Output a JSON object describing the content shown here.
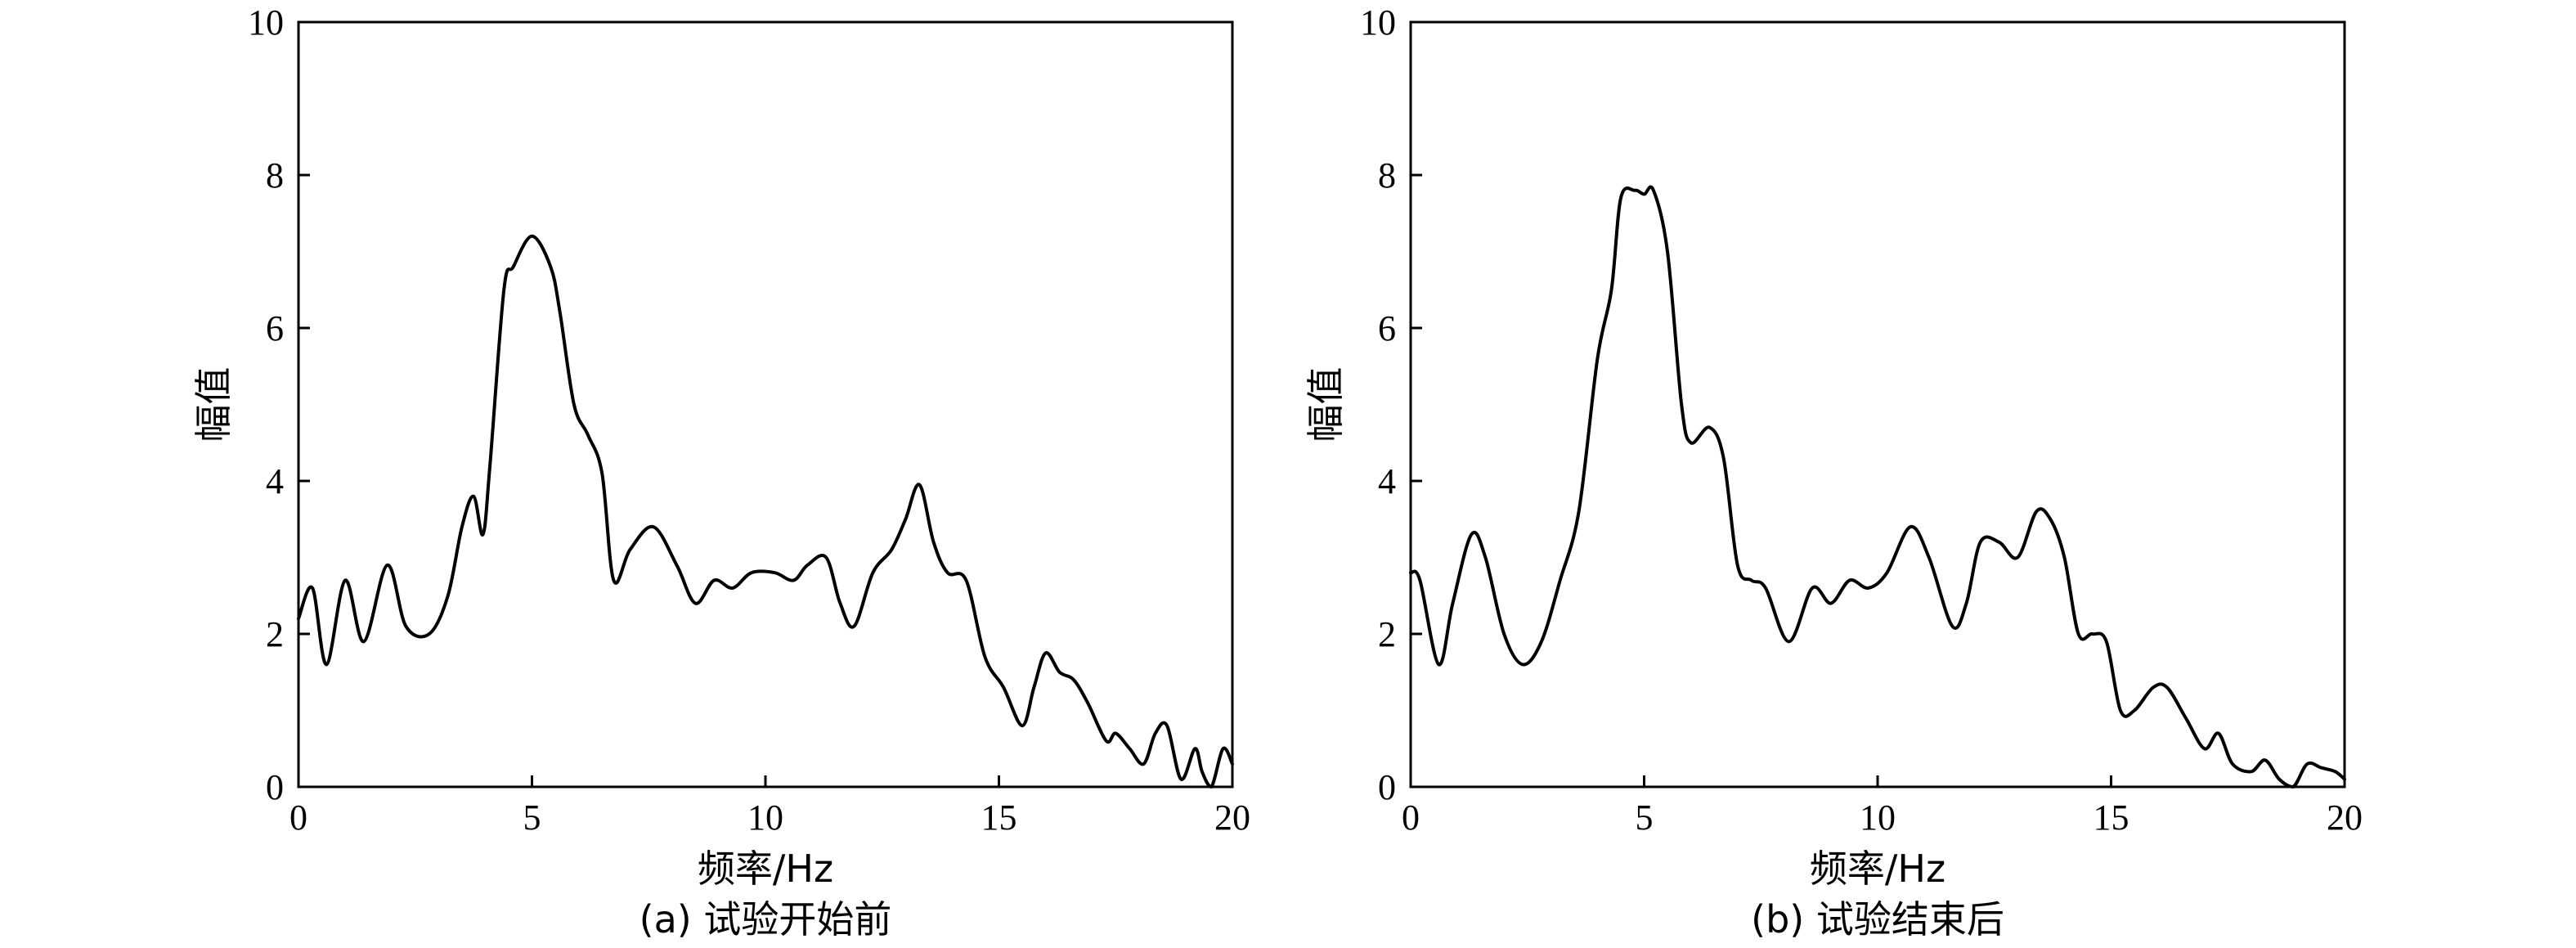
{
  "chart_data": [
    {
      "type": "line",
      "caption": "(a) 试验开始前",
      "xlabel": "频率/Hz",
      "ylabel": "幅值",
      "xlim": [
        0,
        20
      ],
      "ylim": [
        0,
        10
      ],
      "xticks": [
        0,
        5,
        10,
        15,
        20
      ],
      "yticks": [
        0,
        2,
        4,
        6,
        8,
        10
      ],
      "grid": false,
      "series": [
        {
          "x": [
            0,
            0.3,
            0.6,
            1.0,
            1.4,
            1.9,
            2.3,
            2.8,
            3.2,
            3.5,
            3.75,
            3.95,
            4.1,
            4.4,
            4.6,
            5.0,
            5.4,
            5.6,
            5.9,
            6.2,
            6.5,
            6.75,
            7.1,
            7.6,
            8.1,
            8.5,
            8.9,
            9.3,
            9.7,
            10.2,
            10.6,
            10.9,
            11.3,
            11.6,
            11.9,
            12.3,
            12.7,
            13.0,
            13.3,
            13.6,
            13.9,
            14.3,
            14.7,
            15.1,
            15.5,
            15.75,
            16.0,
            16.3,
            16.6,
            16.9,
            17.3,
            17.5,
            17.8,
            18.1,
            18.35,
            18.6,
            18.9,
            19.2,
            19.35,
            19.55,
            19.8,
            20.0
          ],
          "y": [
            2.2,
            2.6,
            1.6,
            2.7,
            1.9,
            2.9,
            2.1,
            2.0,
            2.5,
            3.4,
            3.8,
            3.3,
            4.2,
            6.5,
            6.8,
            7.2,
            6.8,
            6.2,
            5.0,
            4.6,
            4.1,
            2.7,
            3.1,
            3.4,
            2.9,
            2.4,
            2.7,
            2.6,
            2.8,
            2.8,
            2.7,
            2.9,
            3.0,
            2.4,
            2.1,
            2.8,
            3.1,
            3.5,
            3.95,
            3.2,
            2.8,
            2.7,
            1.7,
            1.3,
            0.8,
            1.3,
            1.75,
            1.5,
            1.4,
            1.1,
            0.6,
            0.7,
            0.5,
            0.3,
            0.7,
            0.8,
            0.1,
            0.5,
            0.2,
            0.0,
            0.5,
            0.3
          ]
        }
      ]
    },
    {
      "type": "line",
      "caption": "(b) 试验结束后",
      "xlabel": "频率/Hz",
      "ylabel": "幅值",
      "xlim": [
        0,
        20
      ],
      "ylim": [
        0,
        10
      ],
      "xticks": [
        0,
        5,
        10,
        15,
        20
      ],
      "yticks": [
        0,
        2,
        4,
        6,
        8,
        10
      ],
      "grid": false,
      "series": [
        {
          "x": [
            0,
            0.2,
            0.6,
            0.9,
            1.3,
            1.6,
            2.0,
            2.4,
            2.8,
            3.2,
            3.6,
            4.0,
            4.3,
            4.5,
            4.8,
            5.0,
            5.2,
            5.5,
            5.8,
            6.0,
            6.4,
            6.7,
            7.0,
            7.3,
            7.6,
            8.1,
            8.6,
            9.0,
            9.4,
            9.8,
            10.2,
            10.7,
            11.1,
            11.6,
            11.9,
            12.2,
            12.6,
            13.0,
            13.4,
            13.7,
            14.0,
            14.3,
            14.6,
            14.9,
            15.2,
            15.5,
            15.9,
            16.2,
            16.6,
            17.0,
            17.3,
            17.6,
            18.0,
            18.3,
            18.6,
            18.9,
            19.2,
            19.5,
            19.8,
            20.0
          ],
          "y": [
            2.8,
            2.7,
            1.6,
            2.4,
            3.3,
            3.0,
            2.0,
            1.6,
            1.9,
            2.7,
            3.6,
            5.6,
            6.5,
            7.7,
            7.8,
            7.75,
            7.8,
            7.0,
            5.0,
            4.5,
            4.7,
            4.3,
            2.9,
            2.7,
            2.6,
            1.9,
            2.6,
            2.4,
            2.7,
            2.6,
            2.8,
            3.4,
            3.0,
            2.1,
            2.4,
            3.2,
            3.2,
            3.0,
            3.6,
            3.5,
            3.0,
            2.0,
            2.0,
            1.9,
            1.0,
            1.0,
            1.3,
            1.3,
            0.9,
            0.5,
            0.7,
            0.3,
            0.2,
            0.35,
            0.1,
            0.0,
            0.3,
            0.25,
            0.2,
            0.1
          ]
        }
      ]
    }
  ]
}
